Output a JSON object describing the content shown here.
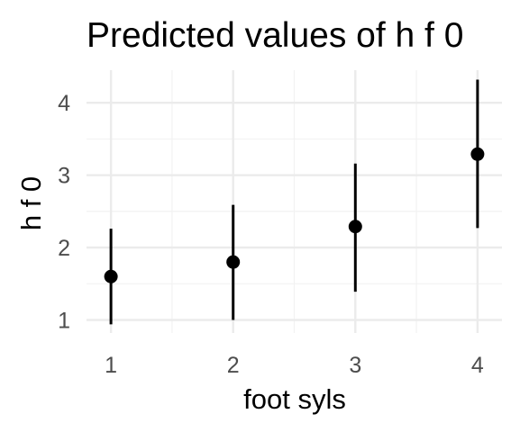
{
  "chart_data": {
    "type": "scatter",
    "title": "Predicted values of h f 0",
    "xlabel": "foot syls",
    "ylabel": "h f 0",
    "x_ticks": [
      "1",
      "2",
      "3",
      "4"
    ],
    "y_ticks": [
      "1",
      "2",
      "3",
      "4"
    ],
    "xlim": [
      0.8,
      4.2
    ],
    "ylim": [
      0.82,
      4.45
    ],
    "grid": true,
    "legend": "none",
    "point_color": "#000000",
    "points": [
      {
        "x": 1,
        "y": 1.6,
        "lower": 0.94,
        "upper": 2.26
      },
      {
        "x": 2,
        "y": 1.8,
        "lower": 1.0,
        "upper": 2.59
      },
      {
        "x": 3,
        "y": 2.29,
        "lower": 1.39,
        "upper": 3.16
      },
      {
        "x": 4,
        "y": 3.29,
        "lower": 2.27,
        "upper": 4.32
      }
    ]
  }
}
